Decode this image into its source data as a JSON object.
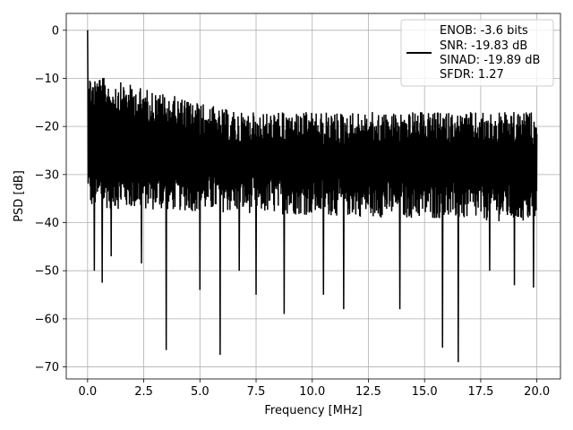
{
  "chart_data": {
    "type": "line",
    "title": "",
    "xlabel": "Frequency [MHz]",
    "ylabel": "PSD [dB]",
    "xlim": [
      -0.95,
      21.05
    ],
    "ylim": [
      -72.5,
      3.5
    ],
    "xticks": [
      0.0,
      2.5,
      5.0,
      7.5,
      10.0,
      12.5,
      15.0,
      17.5,
      20.0
    ],
    "xtick_labels": [
      "0.0",
      "2.5",
      "5.0",
      "7.5",
      "10.0",
      "12.5",
      "15.0",
      "17.5",
      "20.0"
    ],
    "yticks": [
      0,
      -10,
      -20,
      -30,
      -40,
      -50,
      -60,
      -70
    ],
    "ytick_labels": [
      "0",
      "−10",
      "−20",
      "−30",
      "−40",
      "−50",
      "−60",
      "−70"
    ],
    "grid": true,
    "legend_position": "top-right",
    "series": [
      {
        "name": "ENOB: -3.6 bits\nSNR: -19.83 dB\nSINAD: -19.89 dB\nSFDR: 1.27",
        "color": "#000000",
        "x_range": [
          0,
          20
        ],
        "dc_peak": 0,
        "band_upper_db": [
          -9,
          -17
        ],
        "band_lower_db": [
          -37,
          -40
        ],
        "notable_dips": [
          {
            "x": 0.3,
            "y": -50
          },
          {
            "x": 0.65,
            "y": -52.5
          },
          {
            "x": 1.05,
            "y": -47
          },
          {
            "x": 2.4,
            "y": -48.5
          },
          {
            "x": 3.5,
            "y": -66.5
          },
          {
            "x": 5.0,
            "y": -54
          },
          {
            "x": 5.9,
            "y": -67.5
          },
          {
            "x": 6.75,
            "y": -50
          },
          {
            "x": 7.5,
            "y": -55
          },
          {
            "x": 8.75,
            "y": -59
          },
          {
            "x": 10.5,
            "y": -55
          },
          {
            "x": 11.4,
            "y": -58
          },
          {
            "x": 13.9,
            "y": -58
          },
          {
            "x": 15.8,
            "y": -66
          },
          {
            "x": 16.5,
            "y": -69
          },
          {
            "x": 17.9,
            "y": -50
          },
          {
            "x": 19.0,
            "y": -53
          },
          {
            "x": 19.85,
            "y": -53.5
          }
        ]
      }
    ]
  },
  "legend": {
    "lines": [
      "ENOB: -3.6 bits",
      "SNR: -19.83 dB",
      "SINAD: -19.89 dB",
      "SFDR: 1.27"
    ],
    "line_color": "#000000"
  }
}
